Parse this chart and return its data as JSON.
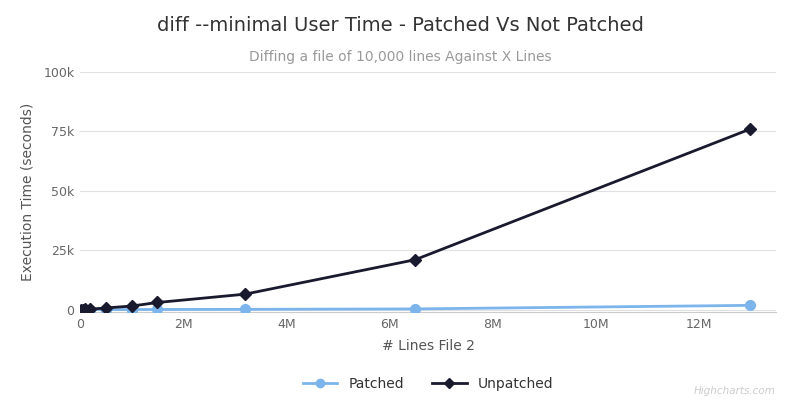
{
  "title": "diff --minimal User Time - Patched Vs Not Patched",
  "subtitle": "Diffing a file of 10,000 lines Against X Lines",
  "xlabel": "# Lines File 2",
  "ylabel": "Execution Time (seconds)",
  "background_color": "#ffffff",
  "plot_background_color": "#ffffff",
  "grid_color": "#e0e0e0",
  "patched": {
    "x": [
      10000,
      50000,
      100000,
      200000,
      500000,
      1000000,
      1500000,
      3200000,
      6500000,
      13000000
    ],
    "y": [
      5,
      8,
      10,
      15,
      25,
      40,
      60,
      120,
      300,
      1800
    ],
    "color": "#7cb5ec",
    "label": "Patched",
    "linewidth": 2.0,
    "markersize": 7
  },
  "unpatched": {
    "x": [
      10000,
      50000,
      100000,
      200000,
      500000,
      1000000,
      1500000,
      3200000,
      6500000,
      13000000
    ],
    "y": [
      10,
      30,
      80,
      200,
      700,
      1500,
      3000,
      6500,
      21000,
      76000
    ],
    "color": "#1a1a2e",
    "label": "Unpatched",
    "linewidth": 2.0,
    "markersize": 6
  },
  "xlim": [
    0,
    13500000
  ],
  "ylim": [
    -1000,
    100000
  ],
  "yticks": [
    0,
    25000,
    50000,
    75000,
    100000
  ],
  "ytick_labels": [
    "0",
    "25k",
    "50k",
    "75k",
    "100k"
  ],
  "xticks": [
    0,
    2000000,
    4000000,
    6000000,
    8000000,
    10000000,
    12000000
  ],
  "xtick_labels": [
    "0",
    "2M",
    "4M",
    "6M",
    "8M",
    "10M",
    "12M"
  ],
  "title_fontsize": 14,
  "subtitle_fontsize": 10,
  "axis_label_fontsize": 10,
  "tick_fontsize": 9,
  "legend_fontsize": 10,
  "watermark": "Highcharts.com"
}
